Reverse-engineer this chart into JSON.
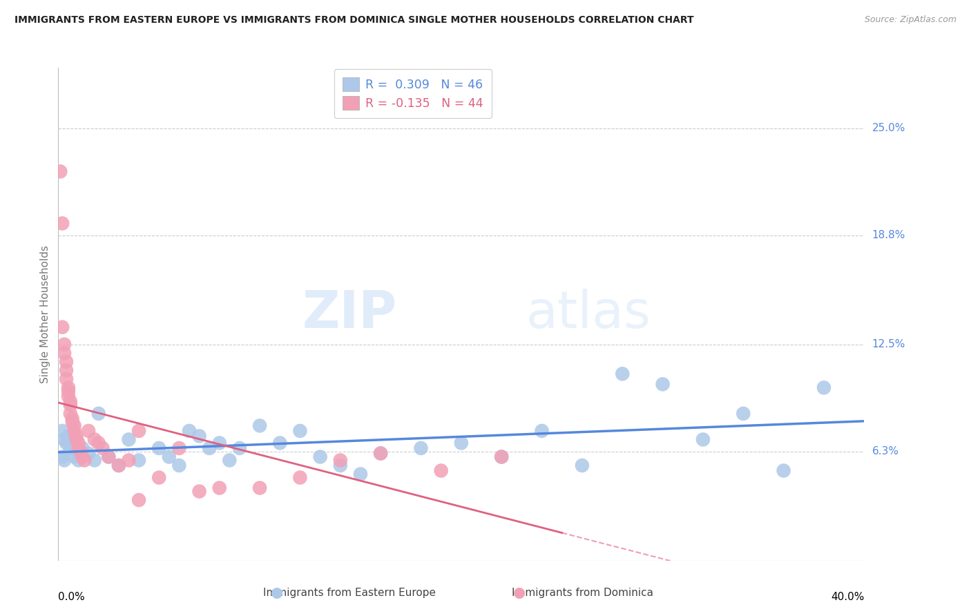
{
  "title": "IMMIGRANTS FROM EASTERN EUROPE VS IMMIGRANTS FROM DOMINICA SINGLE MOTHER HOUSEHOLDS CORRELATION CHART",
  "source": "Source: ZipAtlas.com",
  "ylabel": "Single Mother Households",
  "ytick_labels": [
    "25.0%",
    "18.8%",
    "12.5%",
    "6.3%"
  ],
  "ytick_values": [
    0.25,
    0.188,
    0.125,
    0.063
  ],
  "xlim": [
    0.0,
    0.4
  ],
  "ylim": [
    0.0,
    0.285
  ],
  "legend_blue_text": "R =  0.309   N = 46",
  "legend_pink_text": "R = -0.135   N = 44",
  "legend_blue_label": "Immigrants from Eastern Europe",
  "legend_pink_label": "Immigrants from Dominica",
  "blue_color": "#adc8e8",
  "pink_color": "#f2a0b5",
  "blue_line_color": "#5588dd",
  "pink_line_color": "#e06080",
  "watermark_zip": "ZIP",
  "watermark_atlas": "atlas",
  "blue_scatter_x": [
    0.002,
    0.003,
    0.004,
    0.005,
    0.006,
    0.007,
    0.008,
    0.009,
    0.01,
    0.012,
    0.015,
    0.018,
    0.02,
    0.025,
    0.03,
    0.035,
    0.04,
    0.05,
    0.055,
    0.06,
    0.065,
    0.07,
    0.075,
    0.08,
    0.085,
    0.09,
    0.1,
    0.11,
    0.12,
    0.13,
    0.14,
    0.15,
    0.16,
    0.18,
    0.2,
    0.22,
    0.24,
    0.26,
    0.28,
    0.3,
    0.32,
    0.34,
    0.36,
    0.38,
    0.002,
    0.003
  ],
  "blue_scatter_y": [
    0.075,
    0.07,
    0.068,
    0.072,
    0.065,
    0.068,
    0.06,
    0.063,
    0.058,
    0.065,
    0.062,
    0.058,
    0.085,
    0.06,
    0.055,
    0.07,
    0.058,
    0.065,
    0.06,
    0.055,
    0.075,
    0.072,
    0.065,
    0.068,
    0.058,
    0.065,
    0.078,
    0.068,
    0.075,
    0.06,
    0.055,
    0.05,
    0.062,
    0.065,
    0.068,
    0.06,
    0.075,
    0.055,
    0.108,
    0.102,
    0.07,
    0.085,
    0.052,
    0.1,
    0.06,
    0.058
  ],
  "pink_scatter_x": [
    0.001,
    0.002,
    0.002,
    0.003,
    0.003,
    0.004,
    0.004,
    0.004,
    0.005,
    0.005,
    0.005,
    0.006,
    0.006,
    0.006,
    0.007,
    0.007,
    0.008,
    0.008,
    0.009,
    0.009,
    0.01,
    0.01,
    0.011,
    0.012,
    0.013,
    0.015,
    0.018,
    0.02,
    0.022,
    0.025,
    0.03,
    0.035,
    0.04,
    0.05,
    0.06,
    0.08,
    0.1,
    0.12,
    0.14,
    0.16,
    0.19,
    0.22,
    0.04,
    0.07
  ],
  "pink_scatter_y": [
    0.225,
    0.195,
    0.135,
    0.125,
    0.12,
    0.115,
    0.11,
    0.105,
    0.1,
    0.098,
    0.095,
    0.092,
    0.09,
    0.085,
    0.082,
    0.08,
    0.078,
    0.075,
    0.072,
    0.07,
    0.068,
    0.065,
    0.063,
    0.06,
    0.058,
    0.075,
    0.07,
    0.068,
    0.065,
    0.06,
    0.055,
    0.058,
    0.075,
    0.048,
    0.065,
    0.042,
    0.042,
    0.048,
    0.058,
    0.062,
    0.052,
    0.06,
    0.035,
    0.04
  ]
}
